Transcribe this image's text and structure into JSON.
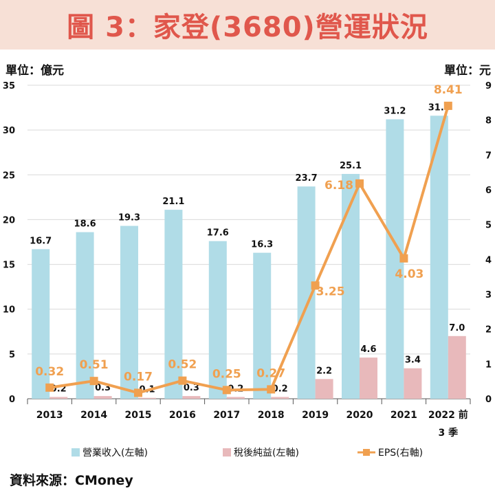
{
  "title": "圖 3：家登(3680)營運狀況",
  "units": {
    "left": "單位：億元",
    "right": "單位：元"
  },
  "source": "資料來源：CMoney",
  "colors": {
    "revenue": "#b0dce7",
    "net_income": "#e8b9bb",
    "eps": "#f0a050",
    "title": "#e0574c",
    "title_bg": "#f7e0d6"
  },
  "chart_data": {
    "type": "bar",
    "categories": [
      "2013",
      "2014",
      "2015",
      "2016",
      "2017",
      "2018",
      "2019",
      "2020",
      "2021",
      "2022 前\n3 季"
    ],
    "series": [
      {
        "name": "營業收入(左軸)",
        "type": "bar",
        "axis": "left",
        "values": [
          16.7,
          18.6,
          19.3,
          21.1,
          17.6,
          16.3,
          23.7,
          25.1,
          31.2,
          31.6
        ]
      },
      {
        "name": "稅後純益(左軸)",
        "type": "bar",
        "axis": "left",
        "values": [
          0.2,
          0.3,
          0.1,
          0.3,
          0.2,
          0.2,
          2.2,
          4.6,
          3.4,
          7.0
        ]
      },
      {
        "name": "EPS(右軸)",
        "type": "line",
        "axis": "right",
        "values": [
          0.32,
          0.51,
          0.17,
          0.52,
          0.25,
          0.27,
          3.25,
          6.18,
          4.03,
          8.41
        ]
      }
    ],
    "ylim_left": [
      0,
      35
    ],
    "yticks_left": [
      0,
      5,
      10,
      15,
      20,
      25,
      30,
      35
    ],
    "ylim_right": [
      0,
      9
    ],
    "yticks_right": [
      0,
      1,
      2,
      3,
      4,
      5,
      6,
      7,
      8,
      9
    ],
    "grid": true,
    "legend_position": "bottom"
  }
}
